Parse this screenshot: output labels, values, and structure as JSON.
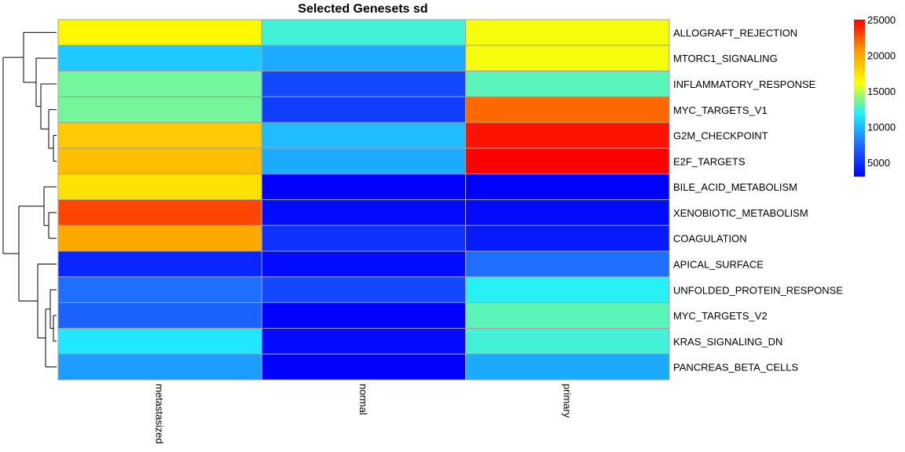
{
  "chart_data": {
    "type": "heatmap",
    "title": "Selected Genesets sd",
    "columns": [
      "metastasized",
      "normal",
      "primary"
    ],
    "rows": [
      "ALLOGRAFT_REJECTION",
      "MTORC1_SIGNALING",
      "INFLAMMATORY_RESPONSE",
      "MYC_TARGETS_V1",
      "G2M_CHECKPOINT",
      "E2F_TARGETS",
      "BILE_ACID_METABOLISM",
      "XENOBIOTIC_METABOLISM",
      "COAGULATION",
      "APICAL_SURFACE",
      "UNFOLDED_PROTEIN_RESPONSE",
      "MYC_TARGETS_V2",
      "KRAS_SIGNALING_DN",
      "PANCREAS_BETA_CELLS"
    ],
    "values": [
      [
        16500,
        12500,
        16000
      ],
      [
        10500,
        9500,
        16000
      ],
      [
        13500,
        6000,
        13000
      ],
      [
        13500,
        5500,
        22000
      ],
      [
        18500,
        10000,
        24500
      ],
      [
        19000,
        9500,
        25000
      ],
      [
        17500,
        3000,
        3000
      ],
      [
        23000,
        3500,
        3500
      ],
      [
        20000,
        5000,
        4000
      ],
      [
        4500,
        3500,
        7500
      ],
      [
        7500,
        6000,
        12000
      ],
      [
        7000,
        3000,
        13000
      ],
      [
        11500,
        3500,
        12500
      ],
      [
        9000,
        3000,
        9500
      ]
    ],
    "colorbar": {
      "min": 3000,
      "max": 25000,
      "ticks": [
        5000,
        10000,
        15000,
        20000,
        25000
      ],
      "tick_labels": [
        "5000",
        "10000",
        "15000",
        "20000",
        "25000"
      ],
      "colors": [
        "#0000ff",
        "#1e6cff",
        "#1ff0ff",
        "#ffff00",
        "#ff9b00",
        "#ff0000"
      ]
    },
    "cell_border_color": "#a0a0a0",
    "row_dendrogram": true
  }
}
